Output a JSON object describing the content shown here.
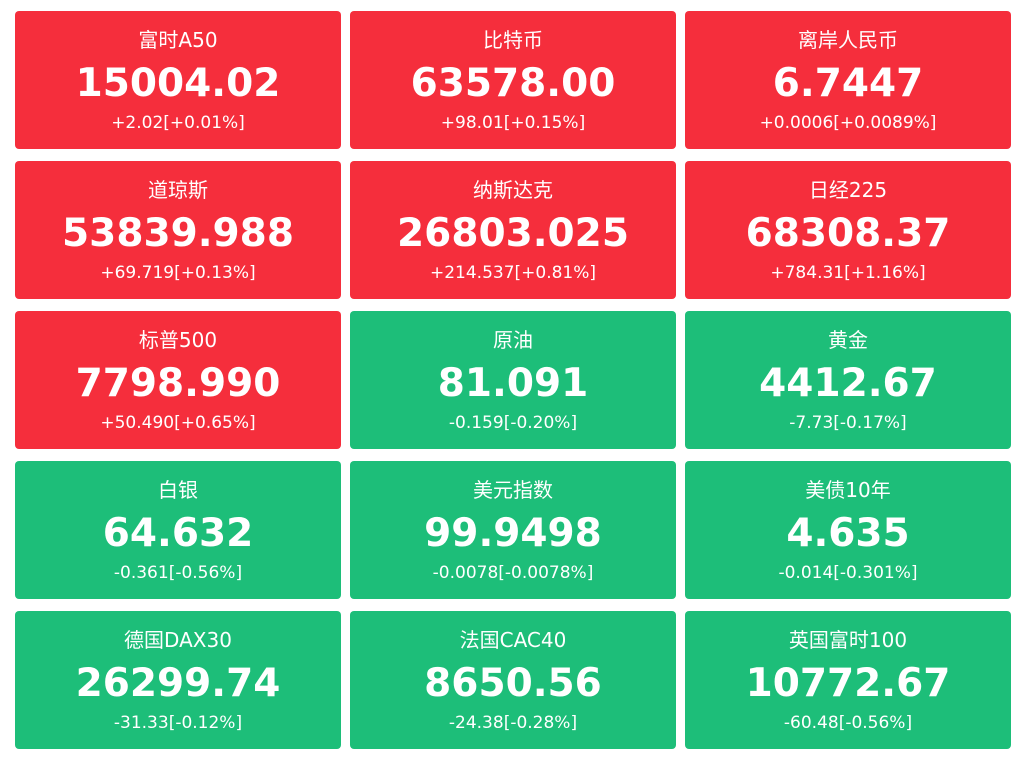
{
  "tiles": [
    {
      "name": "富时A50",
      "price": "15004.02",
      "change": "+2.02[+0.01%]",
      "color": "#f52e3c"
    },
    {
      "name": "比特币",
      "price": "63578.00",
      "change": "+98.01[+0.15%]",
      "color": "#f52e3c"
    },
    {
      "name": "离岸人民币",
      "price": "6.7447",
      "change": "+0.0006[+0.0089%]",
      "color": "#f52e3c"
    },
    {
      "name": "道琼斯",
      "price": "53839.988",
      "change": "+69.719[+0.13%]",
      "color": "#f52e3c"
    },
    {
      "name": "纳斯达克",
      "price": "26803.025",
      "change": "+214.537[+0.81%]",
      "color": "#f52e3c"
    },
    {
      "name": "日经225",
      "price": "68308.37",
      "change": "+784.31[+1.16%]",
      "color": "#f52e3c"
    },
    {
      "name": "标普500",
      "price": "7798.990",
      "change": "+50.490[+0.65%]",
      "color": "#f52e3c"
    },
    {
      "name": "原油",
      "price": "81.091",
      "change": "-0.159[-0.20%]",
      "color": "#1dbe79"
    },
    {
      "name": "黄金",
      "price": "4412.67",
      "change": "-7.73[-0.17%]",
      "color": "#1dbe79"
    },
    {
      "name": "白银",
      "price": "64.632",
      "change": "-0.361[-0.56%]",
      "color": "#1dbe79"
    },
    {
      "name": "美元指数",
      "price": "99.9498",
      "change": "-0.0078[-0.0078%]",
      "color": "#1dbe79"
    },
    {
      "name": "美债10年",
      "price": "4.635",
      "change": "-0.014[-0.301%]",
      "color": "#1dbe79"
    },
    {
      "name": "德国DAX30",
      "price": "26299.74",
      "change": "-31.33[-0.12%]",
      "color": "#1dbe79"
    },
    {
      "name": "法国CAC40",
      "price": "8650.56",
      "change": "-24.38[-0.28%]",
      "color": "#1dbe79"
    },
    {
      "name": "英国富时100",
      "price": "10772.67",
      "change": "-60.48[-0.56%]",
      "color": "#1dbe79"
    }
  ]
}
